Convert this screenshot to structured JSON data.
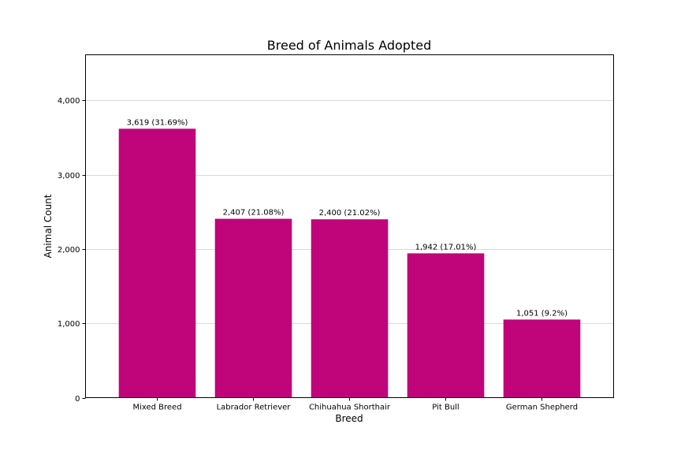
{
  "chart_data": {
    "type": "bar",
    "title": "Breed of Animals Adopted",
    "xlabel": "Breed",
    "ylabel": "Animal Count",
    "categories": [
      "Mixed Breed",
      "Labrador Retriever",
      "Chihuahua Shorthair",
      "Pit Bull",
      "German Shepherd"
    ],
    "values": [
      3619,
      2407,
      2400,
      1942,
      1051
    ],
    "data_labels": [
      "3,619 (31.69%)",
      "2,407 (21.08%)",
      "2,400 (21.02%)",
      "1,942 (17.01%)",
      "1,051 (9.2%)"
    ],
    "yticks": [
      0,
      1000,
      2000,
      3000,
      4000
    ],
    "ytick_labels": [
      "0",
      "1,000",
      "2,000",
      "3,000",
      "4,000"
    ],
    "ylim": [
      0,
      4614
    ],
    "grid": true,
    "bar_color": "#c0047a",
    "grid_color": "#d9d9d9"
  }
}
